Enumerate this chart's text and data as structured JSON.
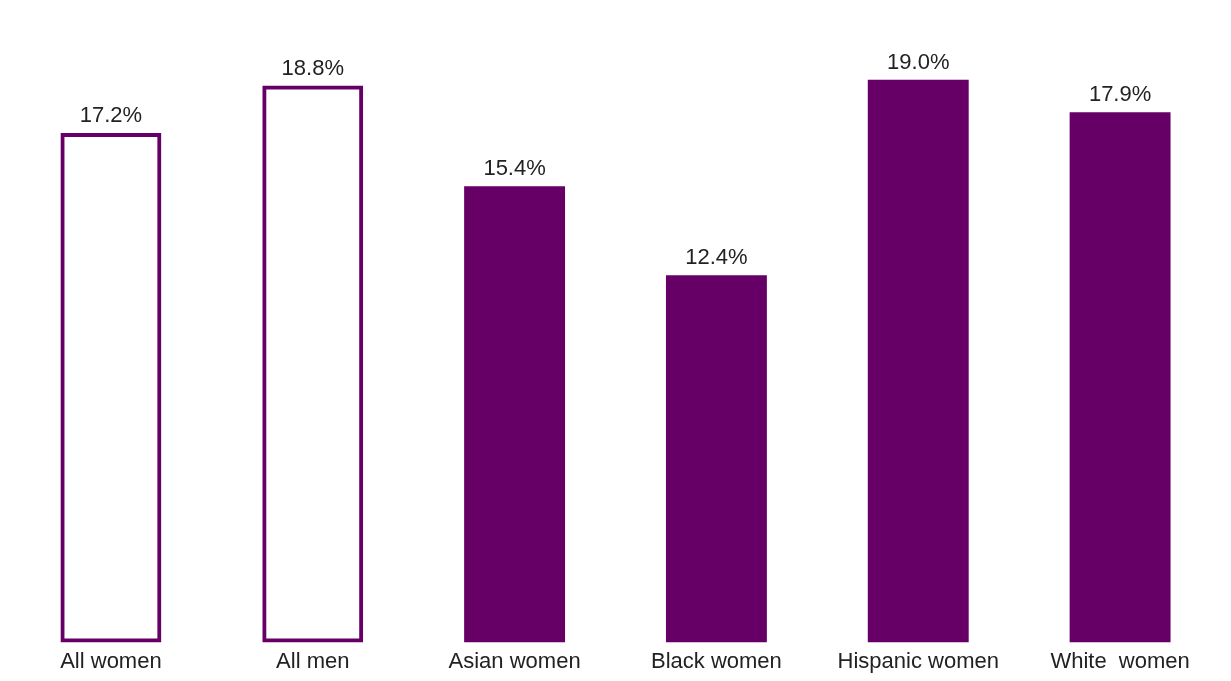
{
  "chart_data": {
    "type": "bar",
    "stacked": true,
    "categories": [
      "All women",
      "All men",
      "Asian women",
      "Black women",
      "Hispanic women",
      "White  women"
    ],
    "series": [
      {
        "color": "#660066",
        "values": [
          17.2,
          18.8,
          null,
          null,
          null,
          null
        ],
        "value_labels": [
          "17.2%",
          "18.8%",
          null,
          null,
          null,
          null
        ]
      },
      {
        "color": "#660066",
        "values": [
          null,
          null,
          15.4,
          12.4,
          19.0,
          17.9
        ],
        "value_labels": [
          null,
          null,
          "15.4%",
          "12.4%",
          "19.0%",
          "17.9%"
        ]
      }
    ],
    "grid": false,
    "legend": false,
    "tick_labels": "x"
  }
}
